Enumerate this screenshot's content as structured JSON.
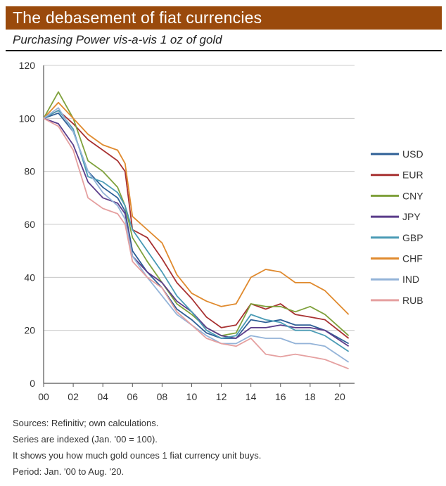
{
  "title": "The debasement of fiat currencies",
  "subtitle": "Purchasing Power vis-a-vis 1 oz of gold",
  "footnotes": [
    "Sources: Refinitiv; own calculations.",
    "Series are indexed (Jan. '00 = 100).",
    "It shows you how much gold ounces 1 fiat currency unit buys.",
    "Period: Jan. '00 to Aug. '20."
  ],
  "chart_data": {
    "type": "line",
    "title": "The debasement of fiat currencies",
    "subtitle": "Purchasing Power vis-a-vis 1 oz of gold",
    "x": [
      2000,
      2001,
      2002,
      2003,
      2004,
      2005,
      2005.5,
      2006,
      2007,
      2008,
      2009,
      2010,
      2011,
      2012,
      2013,
      2014,
      2015,
      2016,
      2017,
      2018,
      2019,
      2020.6
    ],
    "x_tick_labels": [
      "00",
      "02",
      "04",
      "06",
      "08",
      "10",
      "12",
      "14",
      "16",
      "18",
      "20"
    ],
    "x_ticks": [
      2000,
      2002,
      2004,
      2006,
      2008,
      2010,
      2012,
      2014,
      2016,
      2018,
      2020
    ],
    "xlim": [
      2000,
      2021
    ],
    "ylim": [
      0,
      120
    ],
    "y_ticks": [
      0,
      20,
      40,
      60,
      80,
      100,
      120
    ],
    "grid": "horizontal",
    "legend_position": "right",
    "series": [
      {
        "name": "USD",
        "color": "#2e5f96",
        "values": [
          100,
          102,
          95,
          80,
          74,
          70,
          65,
          50,
          42,
          36,
          28,
          24,
          19,
          17,
          17,
          24,
          23,
          24,
          22,
          22,
          20,
          15
        ]
      },
      {
        "name": "EUR",
        "color": "#a83232",
        "values": [
          100,
          103,
          98,
          92,
          88,
          84,
          80,
          58,
          55,
          47,
          38,
          32,
          25,
          21,
          22,
          30,
          28,
          30,
          26,
          25,
          24,
          17
        ]
      },
      {
        "name": "CNY",
        "color": "#7fa13c",
        "values": [
          100,
          110,
          100,
          84,
          80,
          74,
          67,
          55,
          46,
          38,
          30,
          26,
          21,
          18,
          19,
          30,
          29,
          29,
          27,
          29,
          26,
          18
        ]
      },
      {
        "name": "JPY",
        "color": "#5b3d8a",
        "values": [
          100,
          98,
          90,
          76,
          70,
          68,
          64,
          48,
          42,
          38,
          31,
          27,
          21,
          18,
          17,
          21,
          21,
          22,
          21,
          21,
          20,
          14
        ]
      },
      {
        "name": "GBP",
        "color": "#4a9bb5",
        "values": [
          100,
          103,
          96,
          78,
          76,
          72,
          67,
          58,
          50,
          42,
          33,
          27,
          20,
          17,
          18,
          26,
          24,
          23,
          20,
          20,
          18,
          12
        ]
      },
      {
        "name": "CHF",
        "color": "#e08a2e",
        "values": [
          100,
          106,
          100,
          94,
          90,
          88,
          83,
          63,
          58,
          53,
          41,
          34,
          31,
          29,
          30,
          40,
          43,
          42,
          38,
          38,
          35,
          26
        ]
      },
      {
        "name": "IND",
        "color": "#93b3d8",
        "values": [
          100,
          104,
          95,
          80,
          72,
          67,
          62,
          48,
          40,
          33,
          26,
          22,
          18,
          15,
          15,
          18,
          17,
          17,
          15,
          15,
          14,
          8
        ]
      },
      {
        "name": "RUB",
        "color": "#e5a0a0",
        "values": [
          100,
          97,
          88,
          70,
          66,
          64,
          60,
          46,
          40,
          36,
          27,
          22,
          17,
          15,
          14,
          17,
          11,
          10,
          11,
          10,
          9,
          5.5
        ]
      }
    ]
  }
}
